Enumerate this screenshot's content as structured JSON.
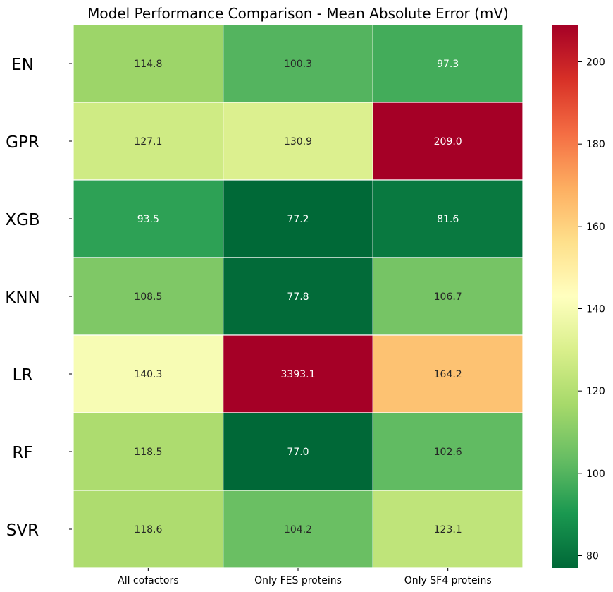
{
  "chart_data": {
    "type": "heatmap",
    "title": "Model Performance Comparison - Mean Absolute Error (mV)",
    "rows": [
      "EN",
      "GPR",
      "XGB",
      "KNN",
      "LR",
      "RF",
      "SVR"
    ],
    "columns": [
      "All cofactors",
      "Only FES proteins",
      "Only SF4 proteins"
    ],
    "values": [
      [
        114.8,
        100.3,
        97.3
      ],
      [
        127.1,
        130.9,
        209.0
      ],
      [
        93.5,
        77.2,
        81.6
      ],
      [
        108.5,
        77.8,
        106.7
      ],
      [
        140.3,
        3393.1,
        164.2
      ],
      [
        118.5,
        77.0,
        102.6
      ],
      [
        118.6,
        104.2,
        123.1
      ]
    ],
    "annotations": [
      [
        "114.8",
        "100.3",
        "97.3"
      ],
      [
        "127.1",
        "130.9",
        "209.0"
      ],
      [
        "93.5",
        "77.2",
        "81.6"
      ],
      [
        "108.5",
        "77.8",
        "106.7"
      ],
      [
        "140.3",
        "3393.1",
        "164.2"
      ],
      [
        "118.5",
        "77.0",
        "102.6"
      ],
      [
        "118.6",
        "104.2",
        "123.1"
      ]
    ],
    "colormap": "RdYlGn_r",
    "color_range": [
      77.0,
      209.0
    ],
    "colorbar": {
      "ticks": [
        80,
        100,
        120,
        140,
        160,
        180,
        200
      ],
      "placement": "right"
    },
    "grid": false
  }
}
